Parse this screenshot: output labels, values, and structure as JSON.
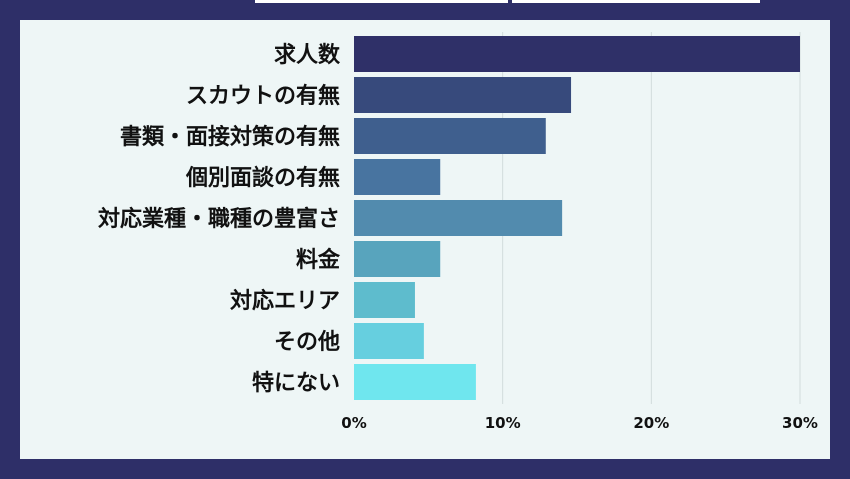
{
  "chart_data": {
    "type": "bar",
    "orientation": "horizontal",
    "categories": [
      "求人数",
      "スカウトの有無",
      "書類・面接対策の有無",
      "個別面談の有無",
      "対応業種・職種の豊富さ",
      "料金",
      "対応エリア",
      "その他",
      "特にない"
    ],
    "values": [
      30.0,
      14.6,
      12.9,
      5.8,
      14.0,
      5.8,
      4.1,
      4.7,
      8.2
    ],
    "colors": [
      "#2f3068",
      "#374a7c",
      "#3f5f8e",
      "#4874a0",
      "#528bae",
      "#58a4bd",
      "#5ebccd",
      "#66cfdf",
      "#6fe6ee"
    ],
    "xlim": [
      0,
      30
    ],
    "x_ticks": [
      "0%",
      "10%",
      "20%",
      "30%"
    ],
    "grid": true,
    "title": "",
    "xlabel": "",
    "ylabel": ""
  }
}
